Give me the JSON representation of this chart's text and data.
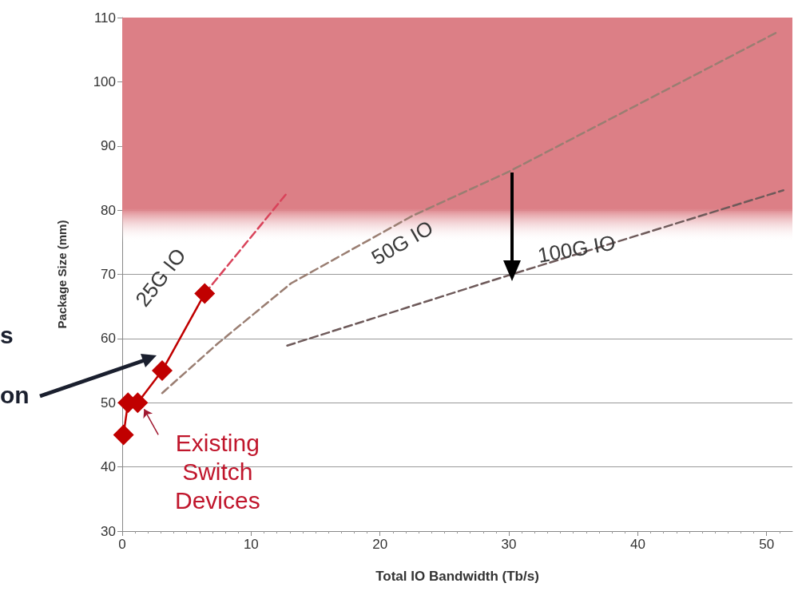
{
  "chart_data": {
    "type": "line",
    "xlabel": "Total IO Bandwidth (Tb/s)",
    "ylabel": "Package Size (mm)",
    "xlim": [
      0,
      52
    ],
    "xticks": [
      0,
      10,
      20,
      30,
      40,
      50
    ],
    "ylim": [
      30,
      110
    ],
    "yticks": [
      30,
      40,
      50,
      60,
      70,
      80,
      90,
      100,
      110
    ],
    "grid": "y",
    "legend": false,
    "series": [
      {
        "color": "#c00000",
        "marker": "diamond",
        "line_style": "solid",
        "x": [
          0.1,
          0.45,
          1.2,
          3.1,
          6.4
        ],
        "values": [
          45,
          50,
          50,
          55,
          67
        ]
      },
      {
        "name": "25G IO",
        "color": "#d9435a",
        "marker": "none",
        "line_style": "dashed",
        "x": [
          6.4,
          12.8
        ],
        "values": [
          67,
          82.7
        ]
      },
      {
        "name": "50G IO",
        "color": "#9a7e72",
        "marker": "none",
        "line_style": "dashed",
        "x": [
          3.1,
          7.4,
          13.1,
          22.5,
          30,
          50.8
        ],
        "values": [
          51.5,
          59.2,
          68.6,
          79.1,
          86,
          107.7
        ]
      },
      {
        "name": "100G IO",
        "color": "#6e5a5a",
        "marker": "none",
        "line_style": "dashed",
        "x": [
          12.8,
          29.9,
          51.3
        ],
        "values": [
          58.9,
          69.8,
          83.1
        ]
      }
    ],
    "bands": [
      {
        "axis": "y",
        "from": 75,
        "to": 110,
        "color": "#dc7f86"
      }
    ],
    "annotations": [
      "s",
      "on",
      {
        "text": "Existing\nSwitch\nDevices",
        "x": 1.2,
        "y": 50
      }
    ]
  }
}
